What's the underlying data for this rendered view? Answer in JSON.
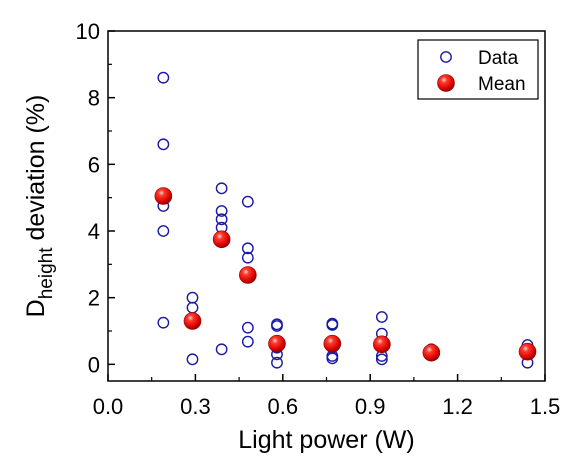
{
  "chart_data": {
    "type": "scatter",
    "xlabel": "Light power (W)",
    "ylabel": {
      "main": "D",
      "subscript": "height",
      "rest": " deviation (%)"
    },
    "xlim": [
      0.0,
      1.5
    ],
    "ylim": [
      -0.5,
      10
    ],
    "xticks": [
      0.0,
      0.3,
      0.6,
      0.9,
      1.2,
      1.5
    ],
    "xtick_labels": [
      "0.0",
      "0.3",
      "0.6",
      "0.9",
      "1.2",
      "1.5"
    ],
    "yticks": [
      0,
      2,
      4,
      6,
      8,
      10
    ],
    "ytick_labels": [
      "0",
      "2",
      "4",
      "6",
      "8",
      "10"
    ],
    "grid": false,
    "legend_position": "top-right",
    "series": [
      {
        "name": "Data",
        "marker": "open-circle",
        "color": "#1a1aa6",
        "points": [
          [
            0.19,
            8.6
          ],
          [
            0.19,
            6.6
          ],
          [
            0.19,
            4.75
          ],
          [
            0.19,
            4.0
          ],
          [
            0.19,
            1.25
          ],
          [
            0.29,
            2.0
          ],
          [
            0.29,
            1.7
          ],
          [
            0.29,
            1.35
          ],
          [
            0.29,
            0.15
          ],
          [
            0.39,
            5.28
          ],
          [
            0.39,
            4.6
          ],
          [
            0.39,
            4.35
          ],
          [
            0.39,
            4.1
          ],
          [
            0.39,
            0.45
          ],
          [
            0.48,
            4.88
          ],
          [
            0.48,
            3.48
          ],
          [
            0.48,
            3.2
          ],
          [
            0.48,
            1.1
          ],
          [
            0.48,
            0.68
          ],
          [
            0.58,
            1.2
          ],
          [
            0.58,
            1.15
          ],
          [
            0.58,
            0.7
          ],
          [
            0.58,
            0.5
          ],
          [
            0.58,
            0.3
          ],
          [
            0.58,
            0.05
          ],
          [
            0.77,
            1.22
          ],
          [
            0.77,
            1.18
          ],
          [
            0.77,
            0.7
          ],
          [
            0.77,
            0.5
          ],
          [
            0.77,
            0.25
          ],
          [
            0.77,
            0.18
          ],
          [
            0.94,
            1.42
          ],
          [
            0.94,
            0.92
          ],
          [
            0.94,
            0.6
          ],
          [
            0.94,
            0.25
          ],
          [
            0.94,
            0.15
          ],
          [
            1.11,
            0.45
          ],
          [
            1.11,
            0.3
          ],
          [
            1.44,
            0.58
          ],
          [
            1.44,
            0.35
          ],
          [
            1.44,
            0.05
          ]
        ]
      },
      {
        "name": "Mean",
        "marker": "filled-sphere",
        "color": "#e00000",
        "points": [
          [
            0.19,
            5.05
          ],
          [
            0.29,
            1.3
          ],
          [
            0.39,
            3.75
          ],
          [
            0.48,
            2.68
          ],
          [
            0.58,
            0.62
          ],
          [
            0.77,
            0.62
          ],
          [
            0.94,
            0.6
          ],
          [
            1.11,
            0.35
          ],
          [
            1.44,
            0.38
          ]
        ]
      }
    ]
  }
}
